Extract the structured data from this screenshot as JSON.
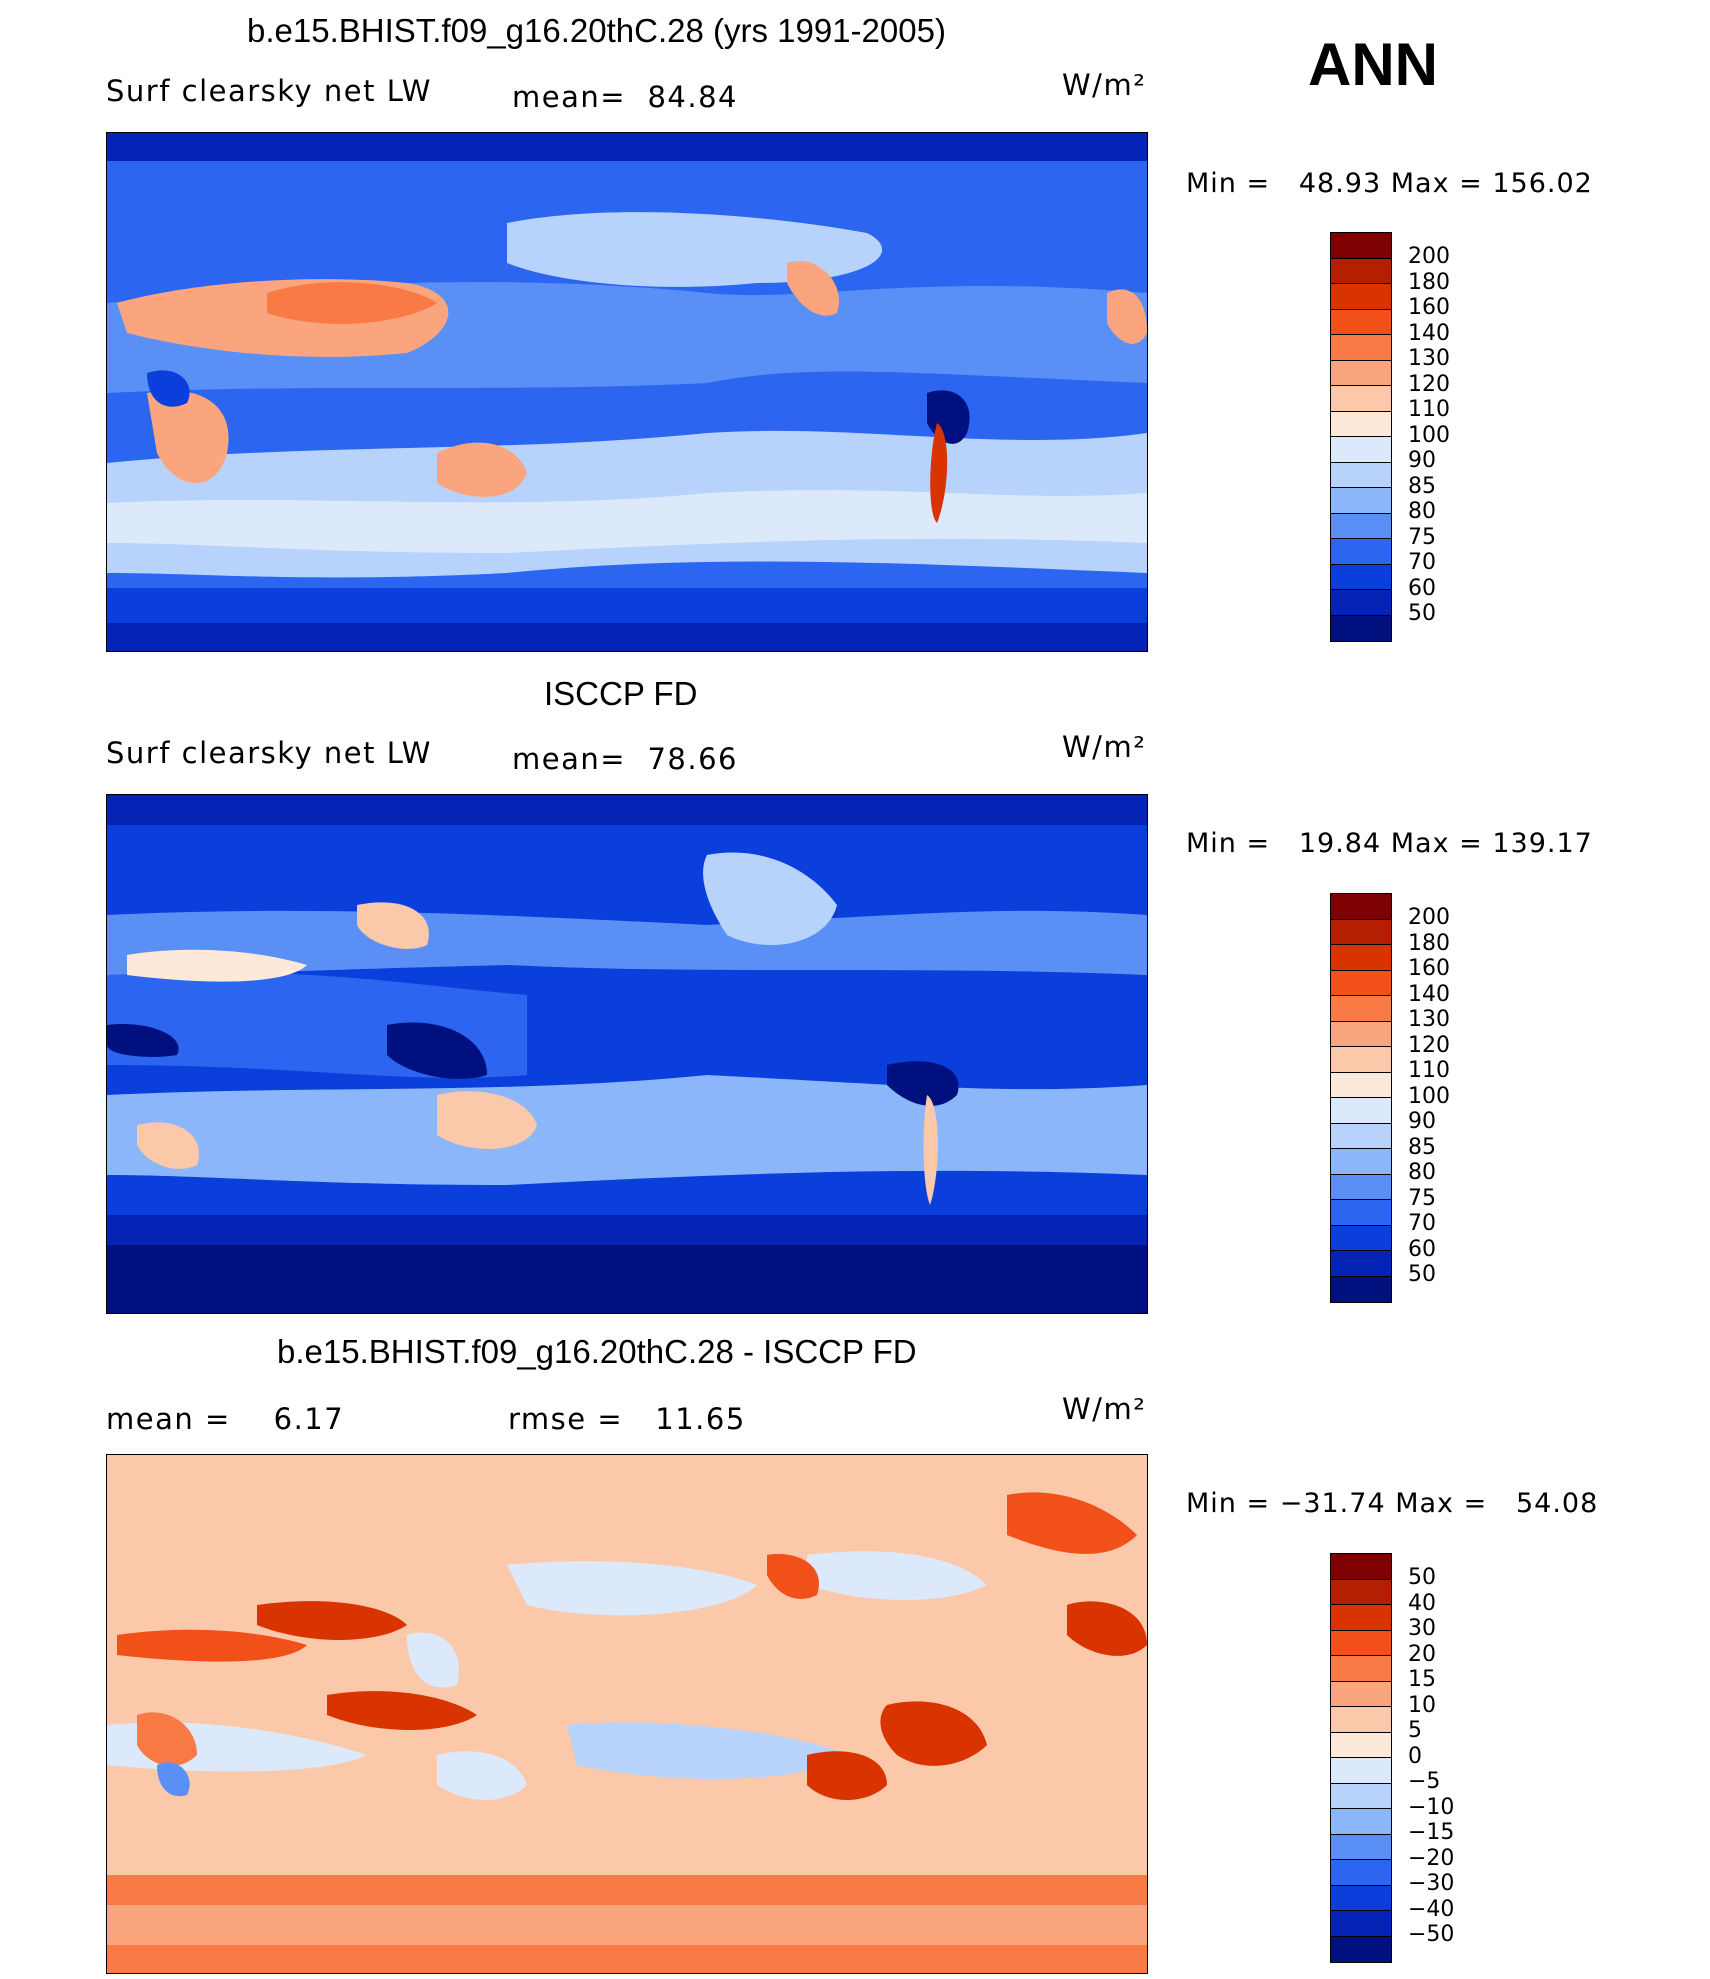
{
  "season": "ANN",
  "panels": [
    {
      "title": "b.e15.BHIST.f09_g16.20thC.28 (yrs 1991-2005)",
      "left_label": "Surf clearsky net LW",
      "mid_label": "mean=  84.84",
      "units": "W/m²",
      "minmax": "Min =   48.93 Max = 156.02",
      "colorbar": "abs"
    },
    {
      "title": "ISCCP FD",
      "left_label": "Surf clearsky net LW",
      "mid_label": "mean=  78.66",
      "units": "W/m²",
      "minmax": "Min =   19.84 Max = 139.17",
      "colorbar": "abs"
    },
    {
      "title": "b.e15.BHIST.f09_g16.20thC.28 - ISCCP FD",
      "left_label": "mean =    6.17",
      "mid_label": "rmse =   11.65",
      "units": "W/m²",
      "minmax": "Min = −31.74 Max =   54.08",
      "colorbar": "diff"
    }
  ],
  "colorbars": {
    "abs": {
      "labels": [
        "200",
        "180",
        "160",
        "140",
        "130",
        "120",
        "110",
        "100",
        "90",
        "85",
        "80",
        "75",
        "70",
        "60",
        "50"
      ],
      "colors": [
        "#7f0000",
        "#b31f00",
        "#d93300",
        "#f25019",
        "#f97a45",
        "#fba57f",
        "#fcc8aa",
        "#fde9da",
        "#dbe9fb",
        "#b7d3fb",
        "#8cb6fa",
        "#5a90f5",
        "#2c65f0",
        "#0b3fdc",
        "#0523b4",
        "#00107f"
      ]
    },
    "diff": {
      "labels": [
        "50",
        "40",
        "30",
        "20",
        "15",
        "10",
        "5",
        "0",
        "−5",
        "−10",
        "−15",
        "−20",
        "−30",
        "−40",
        "−50"
      ],
      "colors": [
        "#7f0000",
        "#b31f00",
        "#d93300",
        "#f25019",
        "#f97a45",
        "#fba57f",
        "#fcc8aa",
        "#fde9da",
        "#dbe9fb",
        "#b7d3fb",
        "#8cb6fa",
        "#5a90f5",
        "#2c65f0",
        "#0b3fdc",
        "#0523b4",
        "#00107f"
      ]
    }
  }
}
